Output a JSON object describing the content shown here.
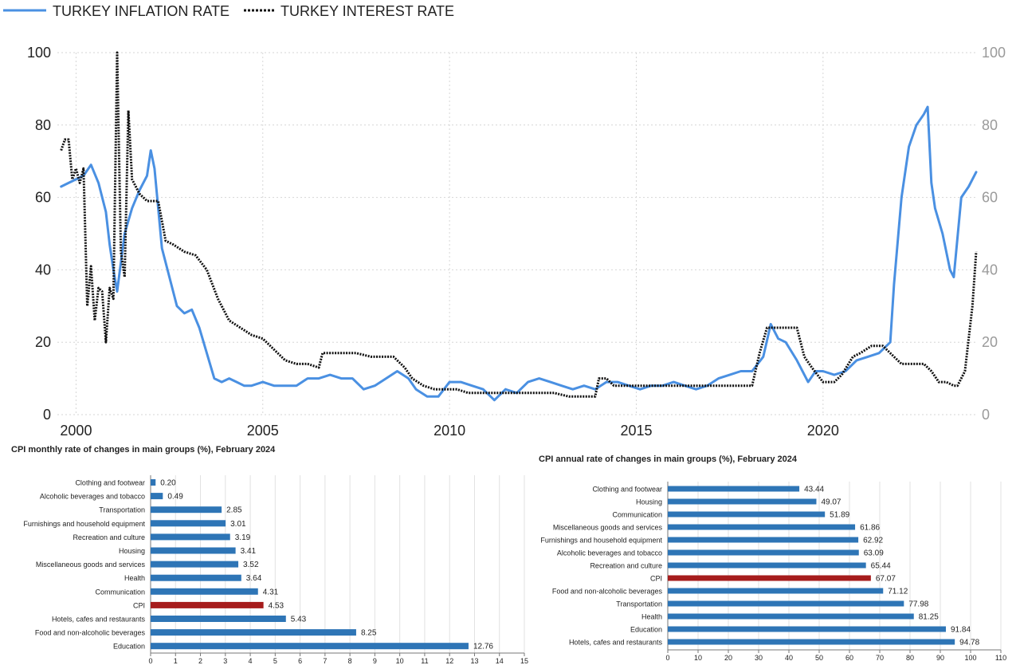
{
  "chart_data": [
    {
      "type": "line",
      "legend_position": "top-left",
      "grid": true,
      "dual_axis": true,
      "xlim": [
        1999.5,
        2024.1
      ],
      "ylim": [
        0,
        100
      ],
      "y_ticks": [
        0,
        20,
        40,
        60,
        80,
        100
      ],
      "x_ticks": [
        2000,
        2005,
        2010,
        2015,
        2020
      ],
      "series": [
        {
          "name": "TURKEY INFLATION RATE",
          "color": "#4a90e2",
          "style": "solid",
          "x": [
            1999.6,
            1999.8,
            2000.0,
            2000.2,
            2000.4,
            2000.6,
            2000.8,
            2000.9,
            2001.0,
            2001.1,
            2001.3,
            2001.5,
            2001.7,
            2001.9,
            2002.0,
            2002.1,
            2002.3,
            2002.5,
            2002.7,
            2002.9,
            2003.1,
            2003.3,
            2003.5,
            2003.7,
            2003.9,
            2004.1,
            2004.3,
            2004.5,
            2004.7,
            2005.0,
            2005.3,
            2005.6,
            2005.9,
            2006.2,
            2006.5,
            2006.8,
            2007.1,
            2007.4,
            2007.7,
            2008.0,
            2008.3,
            2008.6,
            2008.9,
            2009.1,
            2009.4,
            2009.7,
            2010.0,
            2010.3,
            2010.6,
            2010.9,
            2011.2,
            2011.5,
            2011.8,
            2012.1,
            2012.4,
            2012.7,
            2013.0,
            2013.3,
            2013.6,
            2013.9,
            2014.2,
            2014.5,
            2014.8,
            2015.1,
            2015.4,
            2015.7,
            2016.0,
            2016.3,
            2016.6,
            2016.9,
            2017.2,
            2017.5,
            2017.8,
            2018.1,
            2018.4,
            2018.6,
            2018.8,
            2019.0,
            2019.3,
            2019.6,
            2019.8,
            2020.0,
            2020.3,
            2020.6,
            2020.9,
            2021.2,
            2021.5,
            2021.8,
            2021.9,
            2022.1,
            2022.3,
            2022.5,
            2022.7,
            2022.8,
            2022.9,
            2023.0,
            2023.2,
            2023.4,
            2023.5,
            2023.7,
            2023.9,
            2024.1
          ],
          "values": [
            63,
            64,
            65,
            66,
            69,
            64,
            56,
            47,
            40,
            34,
            50,
            57,
            62,
            66,
            73,
            68,
            46,
            38,
            30,
            28,
            29,
            24,
            17,
            10,
            9,
            10,
            9,
            8,
            8,
            9,
            8,
            8,
            8,
            10,
            10,
            11,
            10,
            10,
            7,
            8,
            10,
            12,
            10,
            7,
            5,
            5,
            9,
            9,
            8,
            7,
            4,
            7,
            6,
            9,
            10,
            9,
            8,
            7,
            8,
            7,
            9,
            9,
            8,
            7,
            8,
            8,
            9,
            8,
            7,
            8,
            10,
            11,
            12,
            12,
            16,
            25,
            21,
            20,
            15,
            9,
            12,
            12,
            11,
            12,
            15,
            16,
            17,
            20,
            36,
            60,
            74,
            80,
            83,
            85,
            64,
            57,
            50,
            40,
            38,
            60,
            63,
            67
          ]
        },
        {
          "name": "TURKEY INTEREST RATE",
          "color": "#111111",
          "style": "dotted",
          "x": [
            1999.6,
            1999.7,
            1999.8,
            1999.9,
            2000.0,
            2000.1,
            2000.2,
            2000.3,
            2000.4,
            2000.5,
            2000.6,
            2000.7,
            2000.8,
            2000.9,
            2001.0,
            2001.1,
            2001.2,
            2001.3,
            2001.4,
            2001.5,
            2001.7,
            2001.9,
            2002.2,
            2002.4,
            2002.6,
            2002.9,
            2003.2,
            2003.5,
            2003.8,
            2004.1,
            2004.4,
            2004.7,
            2005.0,
            2005.3,
            2005.6,
            2005.9,
            2006.2,
            2006.5,
            2006.6,
            2007.0,
            2007.5,
            2007.9,
            2008.2,
            2008.5,
            2008.8,
            2009.0,
            2009.3,
            2009.6,
            2009.9,
            2010.2,
            2010.5,
            2010.8,
            2011.1,
            2011.4,
            2011.7,
            2012.0,
            2012.4,
            2012.8,
            2013.2,
            2013.5,
            2013.9,
            2014.0,
            2014.2,
            2014.4,
            2014.6,
            2014.9,
            2015.2,
            2015.5,
            2015.8,
            2016.2,
            2016.6,
            2017.0,
            2017.4,
            2017.8,
            2018.1,
            2018.3,
            2018.5,
            2018.7,
            2019.0,
            2019.3,
            2019.5,
            2019.7,
            2020.0,
            2020.3,
            2020.5,
            2020.8,
            2021.0,
            2021.3,
            2021.6,
            2021.9,
            2022.1,
            2022.4,
            2022.7,
            2022.9,
            2023.1,
            2023.3,
            2023.5,
            2023.6,
            2023.8,
            2024.0,
            2024.1
          ],
          "values": [
            73,
            76,
            76,
            65,
            68,
            64,
            68,
            30,
            41,
            26,
            35,
            34,
            20,
            35,
            32,
            100,
            45,
            38,
            84,
            65,
            61,
            59,
            59,
            48,
            47,
            45,
            44,
            40,
            32,
            26,
            24,
            22,
            21,
            18,
            15,
            14,
            14,
            13,
            17,
            17,
            17,
            16,
            16,
            16,
            13,
            10,
            8,
            7,
            7,
            7,
            6,
            6,
            6,
            6,
            6,
            6,
            6,
            6,
            5,
            5,
            5,
            10,
            10,
            8,
            8,
            8,
            8,
            8,
            8,
            8,
            8,
            8,
            8,
            8,
            8,
            17,
            24,
            24,
            24,
            24,
            16,
            13,
            9,
            9,
            11,
            16,
            17,
            19,
            19,
            16,
            14,
            14,
            14,
            12,
            9,
            9,
            8,
            8,
            12,
            30,
            45
          ]
        }
      ]
    },
    {
      "type": "bar",
      "orientation": "horizontal",
      "title": "CPI monthly rate of changes in main groups (%), February 2024",
      "categories": [
        "Clothing and footwear",
        "Alcoholic beverages and tobacco",
        "Transportation",
        "Furnishings and household equipment",
        "Recreation and culture",
        "Housing",
        "Miscellaneous goods and services",
        "Health",
        "Communication",
        "CPI",
        "Hotels, cafes and restaurants",
        "Food and non-alcoholic beverages",
        "Education"
      ],
      "values": [
        0.2,
        0.49,
        2.85,
        3.01,
        3.19,
        3.41,
        3.52,
        3.64,
        4.31,
        4.53,
        5.43,
        8.25,
        12.76
      ],
      "value_labels": [
        "0.20",
        "0.49",
        "2.85",
        "3.01",
        "3.19",
        "3.41",
        "3.52",
        "3.64",
        "4.31",
        "4.53",
        "5.43",
        "8.25",
        "12.76"
      ],
      "highlight_category": "CPI",
      "xlim": [
        0,
        15
      ],
      "x_ticks": [
        0,
        1,
        2,
        3,
        4,
        5,
        6,
        7,
        8,
        9,
        10,
        11,
        12,
        13,
        14,
        15
      ]
    },
    {
      "type": "bar",
      "orientation": "horizontal",
      "title": "CPI annual rate of changes in main groups (%), February 2024",
      "categories": [
        "Clothing and footwear",
        "Housing",
        "Communication",
        "Miscellaneous goods and services",
        "Furnishings and household equipment",
        "Alcoholic beverages and tobacco",
        "Recreation and culture",
        "CPI",
        "Food and non-alcoholic beverages",
        "Transportation",
        "Health",
        "Education",
        "Hotels, cafes and restaurants"
      ],
      "values": [
        43.44,
        49.07,
        51.89,
        61.86,
        62.92,
        63.09,
        65.44,
        67.07,
        71.12,
        77.98,
        81.25,
        91.84,
        94.78
      ],
      "value_labels": [
        "43.44",
        "49.07",
        "51.89",
        "61.86",
        "62.92",
        "63.09",
        "65.44",
        "67.07",
        "71.12",
        "77.98",
        "81.25",
        "91.84",
        "94.78"
      ],
      "highlight_category": "CPI",
      "xlim": [
        0,
        110
      ],
      "x_ticks": [
        0,
        10,
        20,
        30,
        40,
        50,
        60,
        70,
        80,
        90,
        100,
        110
      ]
    }
  ],
  "colors": {
    "bar": "#2e75b6",
    "highlight_bar": "#a61c1c",
    "inflation_line": "#4a90e2",
    "interest_line": "#111111"
  }
}
